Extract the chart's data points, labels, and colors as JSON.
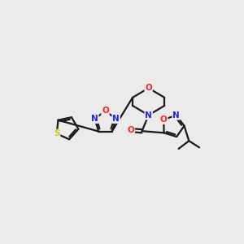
{
  "bg_color": "#ebebeb",
  "bond_color": "#1a1a1a",
  "atom_colors": {
    "N": "#2020ff",
    "O": "#ff2020",
    "S": "#cccc00",
    "C": "#1a1a1a"
  },
  "lw": 1.6,
  "fontsize": 7.5
}
